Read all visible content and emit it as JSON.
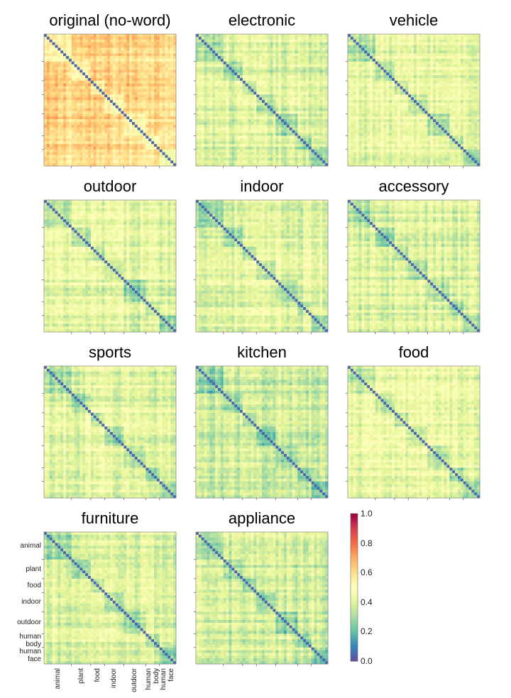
{
  "chart_data": {
    "type": "heatmap",
    "description_of_data": "Grid of similarity matrices (0.0 low – 1.0 high) between image categories, one per word condition",
    "panels": [
      {
        "title": "original (no-word)",
        "base_level": 0.62
      },
      {
        "title": "electronic",
        "base_level": 0.38
      },
      {
        "title": "vehicle",
        "base_level": 0.42
      },
      {
        "title": "outdoor",
        "base_level": 0.4
      },
      {
        "title": "indoor",
        "base_level": 0.4
      },
      {
        "title": "accessory",
        "base_level": 0.38
      },
      {
        "title": "sports",
        "base_level": 0.4
      },
      {
        "title": "kitchen",
        "base_level": 0.36
      },
      {
        "title": "food",
        "base_level": 0.42
      },
      {
        "title": "furniture",
        "base_level": 0.38
      },
      {
        "title": "appliance",
        "base_level": 0.36
      }
    ],
    "categories": [
      "animal",
      "plant",
      "food",
      "indoor",
      "outdoor",
      "human body",
      "human face"
    ],
    "category_fractions": [
      0.2,
      0.16,
      0.1,
      0.15,
      0.17,
      0.1,
      0.12
    ],
    "colorbar": {
      "min": 0.0,
      "max": 1.0,
      "ticks": [
        "0.0",
        "0.2",
        "0.4",
        "0.6",
        "0.8",
        "1.0"
      ],
      "colormap": "Spectral_r"
    },
    "y_axis_labels": [
      "animal",
      "plant",
      "food",
      "indoor",
      "outdoor",
      "human\nbody",
      "human\nface"
    ],
    "x_axis_labels": [
      "animal",
      "plant",
      "food",
      "indoor",
      "outdoor",
      "human\nbody",
      "human\nface"
    ]
  }
}
